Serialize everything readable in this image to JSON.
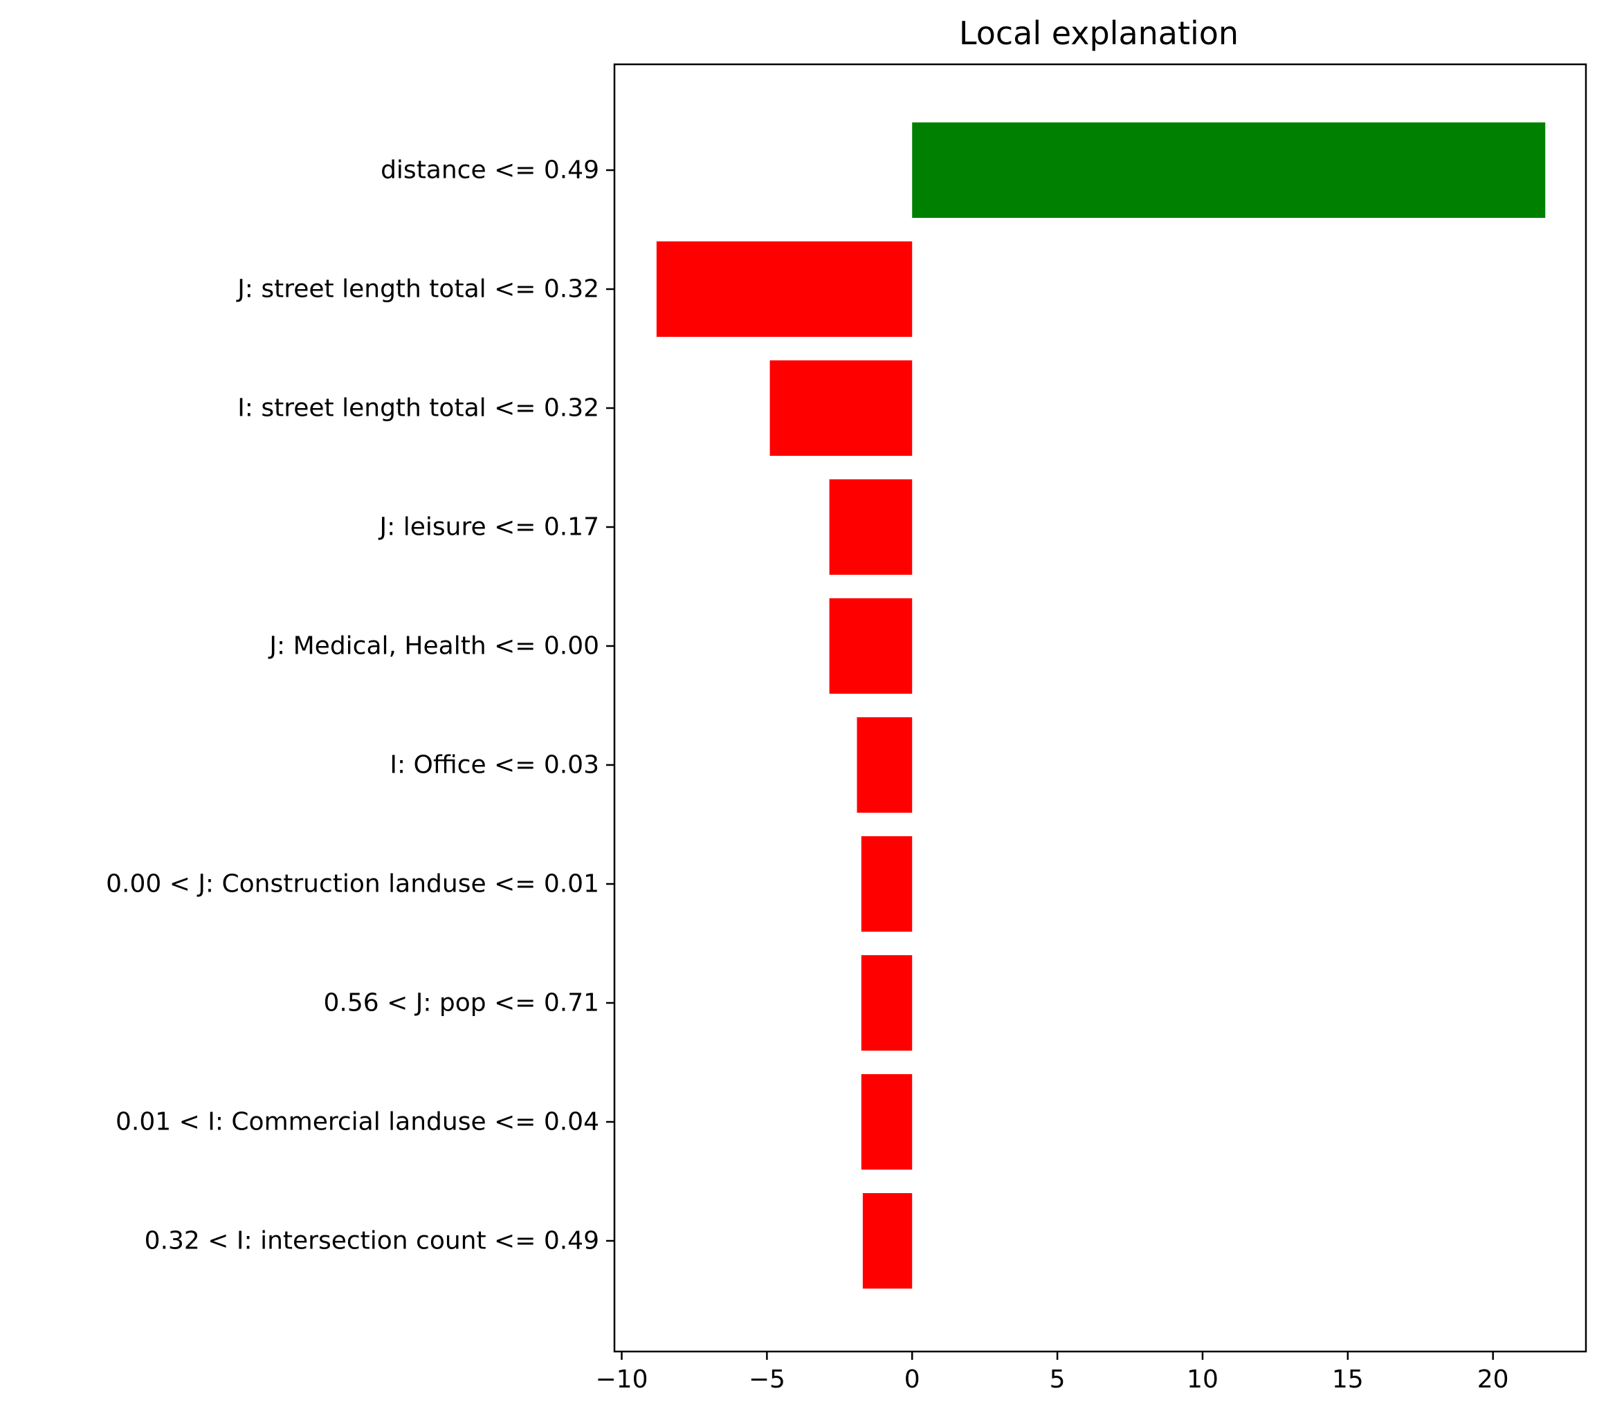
{
  "chart_data": {
    "type": "bar",
    "orientation": "horizontal",
    "title": "Local explanation",
    "xlabel": "",
    "ylabel": "",
    "categories": [
      "distance <= 0.49",
      "J: street length total <= 0.32",
      "I: street length total <= 0.32",
      "J: leisure <= 0.17",
      "J: Medical, Health <= 0.00",
      "I: Office <= 0.03",
      "0.00 < J: Construction landuse <= 0.01",
      "0.56 < J: pop <= 0.71",
      "0.01 < I: Commercial landuse <= 0.04",
      "0.32 < I: intersection count <= 0.49"
    ],
    "values": [
      21.8,
      -8.8,
      -4.9,
      -2.85,
      -2.85,
      -1.9,
      -1.75,
      -1.75,
      -1.75,
      -1.7
    ],
    "xlim": [
      -10.25,
      23.2
    ],
    "xticks": [
      -10,
      -5,
      0,
      5,
      10,
      15,
      20
    ],
    "xtick_labels": [
      "−10",
      "−5",
      "0",
      "5",
      "10",
      "15",
      "20"
    ],
    "positive_color": "#008000",
    "negative_color": "#ff0000",
    "grid": false,
    "legend": "none"
  }
}
